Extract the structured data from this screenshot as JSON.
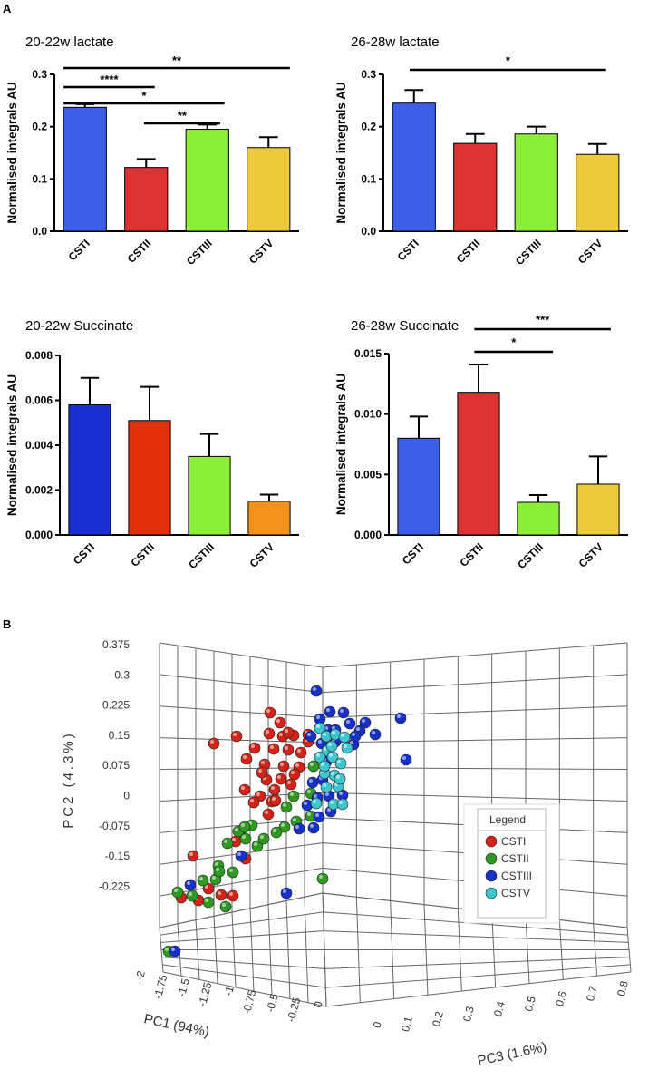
{
  "panel_a_label": "A",
  "panel_b_label": "B",
  "chart_data": [
    {
      "type": "bar",
      "title": "20-22w lactate",
      "ylabel": "Normalised integrals AU",
      "categories": [
        "CSTI",
        "CSTII",
        "CSTIII",
        "CSTV"
      ],
      "values": [
        0.237,
        0.122,
        0.195,
        0.16
      ],
      "errors": [
        0.006,
        0.016,
        0.009,
        0.02
      ],
      "colors": [
        "#3d5fe8",
        "#db3232",
        "#8aee3a",
        "#eec93b"
      ],
      "ylim": [
        0,
        0.3
      ],
      "yticks": [
        "0.0",
        "0.1",
        "0.2",
        "0.3"
      ],
      "significance": [
        {
          "from": 0,
          "to": 3,
          "label": "**"
        },
        {
          "from": 0,
          "to": 1,
          "label": "****"
        },
        {
          "from": 0,
          "to": 2,
          "label": "*"
        },
        {
          "from": 1,
          "to": 2,
          "label": "**"
        }
      ]
    },
    {
      "type": "bar",
      "title": "26-28w lactate",
      "ylabel": "Normalised integrals AU",
      "categories": [
        "CSTI",
        "CSTII",
        "CSTIII",
        "CSTV"
      ],
      "values": [
        0.245,
        0.168,
        0.186,
        0.147
      ],
      "errors": [
        0.025,
        0.018,
        0.014,
        0.02
      ],
      "colors": [
        "#3d5fe8",
        "#db3232",
        "#8aee3a",
        "#eec93b"
      ],
      "ylim": [
        0,
        0.3
      ],
      "yticks": [
        "0.0",
        "0.1",
        "0.2",
        "0.3"
      ],
      "significance": [
        {
          "from": 0,
          "to": 3,
          "label": "*"
        }
      ]
    },
    {
      "type": "bar",
      "title": "20-22w Succinate",
      "ylabel": "Normalised integrals AU",
      "categories": [
        "CSTI",
        "CSTII",
        "CSTIII",
        "CSTV"
      ],
      "values": [
        0.0058,
        0.0051,
        0.0035,
        0.0015
      ],
      "errors": [
        0.0012,
        0.0015,
        0.001,
        0.0003
      ],
      "colors": [
        "#1b2fd0",
        "#e0300e",
        "#8aee3a",
        "#f0921c"
      ],
      "ylim": [
        0,
        0.008
      ],
      "yticks": [
        "0.000",
        "0.002",
        "0.004",
        "0.006",
        "0.008"
      ],
      "significance": []
    },
    {
      "type": "bar",
      "title": "26-28w Succinate",
      "ylabel": "Normalised integrals AU",
      "categories": [
        "CSTI",
        "CSTII",
        "CSTIII",
        "CSTV"
      ],
      "values": [
        0.008,
        0.0118,
        0.0027,
        0.0042
      ],
      "errors": [
        0.0018,
        0.0023,
        0.0006,
        0.0023
      ],
      "colors": [
        "#3d5fe8",
        "#db3232",
        "#8aee3a",
        "#eec93b"
      ],
      "ylim": [
        0,
        0.015
      ],
      "yticks": [
        "0.000",
        "0.005",
        "0.010",
        "0.015"
      ],
      "significance": [
        {
          "from": 1,
          "to": 3,
          "label": "***"
        },
        {
          "from": 1,
          "to": 2,
          "label": "*"
        }
      ]
    },
    {
      "type": "scatter3d",
      "xlabel": "PC1 (94%)",
      "ylabel": "PC2 (4.3%)",
      "zlabel": "PC3 (1.6%)",
      "yticks": [
        "0.375",
        "0.3",
        "0.225",
        "0.15",
        "0.075",
        "0",
        "-0.075",
        "-0.15",
        "-0.225"
      ],
      "xticks": [
        "-2",
        "-1.75",
        "-1.5",
        "-1.25",
        "-1",
        "-0.75",
        "-0.5",
        "-0.25",
        "0"
      ],
      "zticks": [
        "0",
        "0.1",
        "0.2",
        "0.3",
        "0.4",
        "0.5",
        "0.6",
        "0.7",
        "0.8"
      ],
      "legend_title": "Legend",
      "series": [
        {
          "name": "CSTI",
          "color": "#d22418"
        },
        {
          "name": "CSTII",
          "color": "#2f9a22"
        },
        {
          "name": "CSTIII",
          "color": "#1630c8"
        },
        {
          "name": "CSTV",
          "color": "#3ec6cf"
        }
      ]
    }
  ]
}
